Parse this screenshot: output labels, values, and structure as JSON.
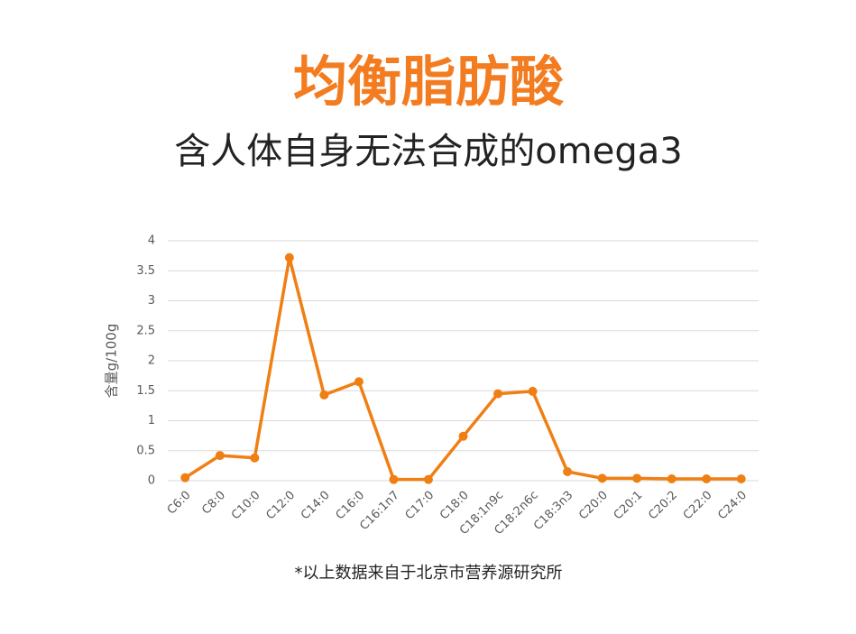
{
  "chart_data": {
    "type": "line",
    "title": "均衡脂肪酸",
    "subtitle": "含人体自身无法合成的omega3",
    "y_label": "含量g/100g",
    "footnote": "*以上数据来自于北京市营养源研究所",
    "categories": [
      "C6:0",
      "C8:0",
      "C10:0",
      "C12:0",
      "C14:0",
      "C16:0",
      "C16:1n7",
      "C17:0",
      "C18:0",
      "C18:1n9c",
      "C18:2n6c",
      "C18:3n3",
      "C20:0",
      "C20:1",
      "C20:2",
      "C22:0",
      "C24:0"
    ],
    "values": [
      0.05,
      0.42,
      0.38,
      3.72,
      1.43,
      1.65,
      0.02,
      0.02,
      0.74,
      1.45,
      1.49,
      0.15,
      0.04,
      0.04,
      0.03,
      0.03,
      0.03
    ],
    "color": "#f07f13",
    "ylim": [
      0,
      4
    ],
    "yticks": [
      0,
      0.5,
      1,
      1.5,
      2,
      2.5,
      3,
      3.5,
      4
    ],
    "grid": true
  }
}
